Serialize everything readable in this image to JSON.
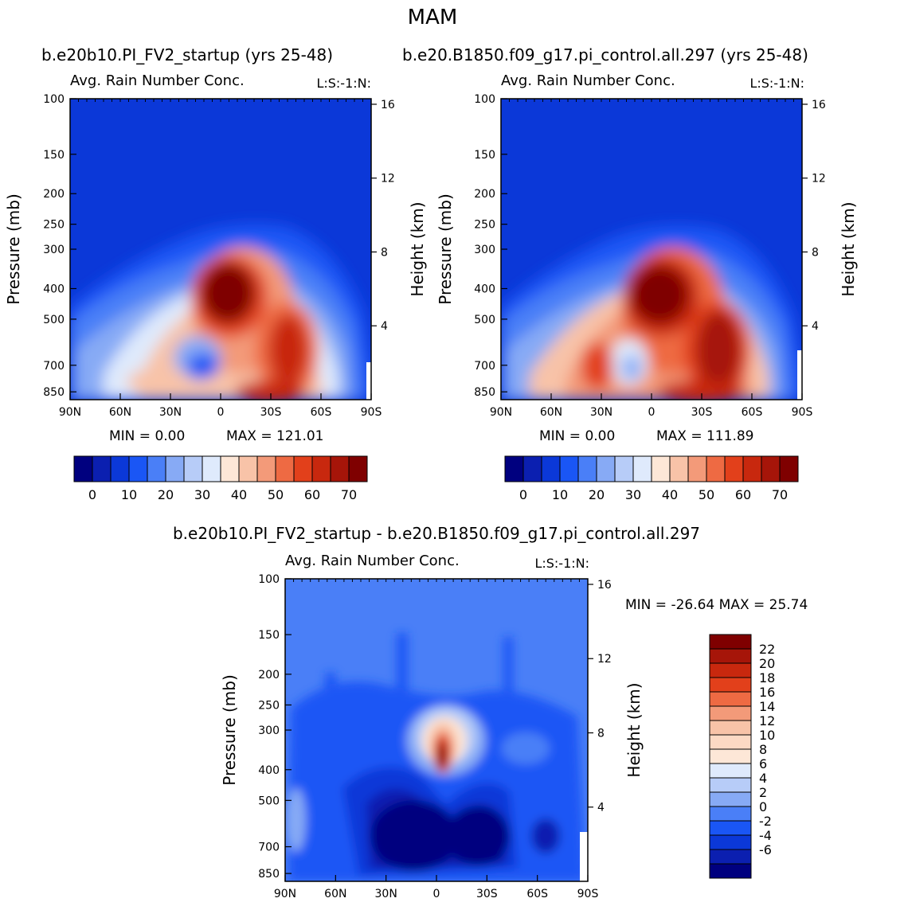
{
  "figure": {
    "title": "MAM",
    "subtitle_left": "b.e20b10.PI_FV2_startup (yrs 25-48)",
    "subtitle_right": "b.e20.B1850.f09_g17.pi_control.all.297 (yrs 25-48)",
    "diff_title": "b.e20b10.PI_FV2_startup - b.e20.B1850.f09_g17.pi_control.all.297"
  },
  "chart_data": [
    {
      "type": "heatmap",
      "panel": "left",
      "title": "Avg. Rain Number Conc.",
      "right_title": "L:S:-1:N:",
      "xlabel": "",
      "ylabel": "Pressure (mb)",
      "ylabel_right": "Height (km)",
      "x_ticks": [
        "90N",
        "60N",
        "30N",
        "0",
        "30S",
        "60S",
        "90S"
      ],
      "y_ticks": [
        100,
        150,
        200,
        250,
        300,
        400,
        500,
        700,
        850
      ],
      "y_right_ticks": [
        16,
        12,
        8,
        4
      ],
      "min_label": "MIN =    0.00",
      "max_label": "MAX =  121.01",
      "colorbar_labels": [
        "0",
        "10",
        "20",
        "30",
        "40",
        "50",
        "60",
        "70"
      ],
      "colors": [
        "#00007f",
        "#0b1fb0",
        "#0b38d8",
        "#1a56f5",
        "#4a7ff7",
        "#87aaf5",
        "#b7ccf8",
        "#dfeafc",
        "#fde7d7",
        "#f8c3a8",
        "#f39a79",
        "#ee6a43",
        "#e2401b",
        "#c8280e",
        "#a61509",
        "#7f0000"
      ]
    },
    {
      "type": "heatmap",
      "panel": "right",
      "title": "Avg. Rain Number Conc.",
      "right_title": "L:S:-1:N:",
      "xlabel": "",
      "ylabel": "Pressure (mb)",
      "ylabel_right": "Height (km)",
      "x_ticks": [
        "90N",
        "60N",
        "30N",
        "0",
        "30S",
        "60S",
        "90S"
      ],
      "y_ticks": [
        100,
        150,
        200,
        250,
        300,
        400,
        500,
        700,
        850
      ],
      "y_right_ticks": [
        16,
        12,
        8,
        4
      ],
      "min_label": "MIN =    0.00",
      "max_label": "MAX =  111.89",
      "colorbar_labels": [
        "0",
        "10",
        "20",
        "30",
        "40",
        "50",
        "60",
        "70"
      ],
      "colors": [
        "#00007f",
        "#0b1fb0",
        "#0b38d8",
        "#1a56f5",
        "#4a7ff7",
        "#87aaf5",
        "#b7ccf8",
        "#dfeafc",
        "#fde7d7",
        "#f8c3a8",
        "#f39a79",
        "#ee6a43",
        "#e2401b",
        "#c8280e",
        "#a61509",
        "#7f0000"
      ]
    },
    {
      "type": "heatmap",
      "panel": "difference",
      "title": "Avg. Rain Number Conc.",
      "right_title": "L:S:-1:N:",
      "xlabel": "",
      "ylabel": "Pressure (mb)",
      "ylabel_right": "Height (km)",
      "x_ticks": [
        "90N",
        "60N",
        "30N",
        "0",
        "30S",
        "60S",
        "90S"
      ],
      "y_ticks": [
        100,
        150,
        200,
        250,
        300,
        400,
        500,
        700,
        850
      ],
      "y_right_ticks": [
        16,
        12,
        8,
        4
      ],
      "minmax_label": "MIN = -26.64   MAX =  25.74",
      "colorbar_labels": [
        "22",
        "20",
        "18",
        "16",
        "14",
        "12",
        "10",
        "8",
        "6",
        "4",
        "2",
        "0",
        "-2",
        "-4",
        "-6"
      ],
      "colors": [
        "#7f0000",
        "#a61509",
        "#c8280e",
        "#e2401b",
        "#ee6a43",
        "#f39a79",
        "#f8c3a8",
        "#fcd9c4",
        "#fde7d7",
        "#dfeafc",
        "#b7ccf8",
        "#87aaf5",
        "#4a7ff7",
        "#1a56f5",
        "#0b38d8",
        "#0b1fb0",
        "#00007f"
      ]
    }
  ]
}
